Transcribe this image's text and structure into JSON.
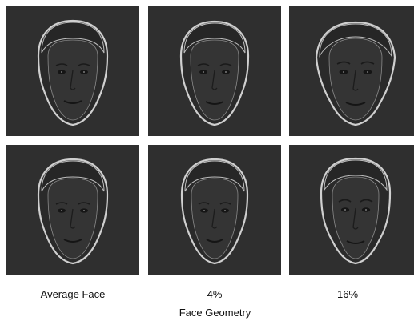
{
  "figure": {
    "columns": [
      {
        "label": "Average Face"
      },
      {
        "label": "4%"
      },
      {
        "label": "16%"
      }
    ],
    "axis_label": "Face Geometry",
    "panels": [
      {
        "row": 1,
        "col": 1,
        "depicts": "average-face"
      },
      {
        "row": 1,
        "col": 2,
        "depicts": "face-4-percent"
      },
      {
        "row": 1,
        "col": 3,
        "depicts": "face-16-percent"
      },
      {
        "row": 2,
        "col": 1,
        "depicts": "average-face"
      },
      {
        "row": 2,
        "col": 2,
        "depicts": "face-4-percent"
      },
      {
        "row": 2,
        "col": 3,
        "depicts": "face-16-percent"
      }
    ],
    "colors": {
      "panel_background": "#2f2f2f",
      "face_fill": "#323232",
      "hair_fill": "#272727",
      "outline_glow": "#dcdcdc",
      "feature_dark": "#151515"
    }
  }
}
